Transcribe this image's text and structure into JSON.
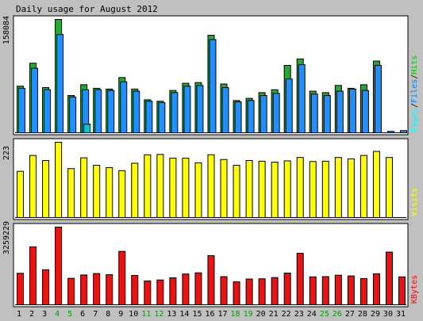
{
  "chart_data": [
    {
      "type": "bar",
      "title": "Daily usage for August 2012",
      "panel": "hits-files-pages",
      "ymax_label": "158084",
      "legend": [
        {
          "name": "Pages",
          "color": "#00ffff"
        },
        {
          "name": "Files",
          "color": "#0080ff"
        },
        {
          "name": "Hits",
          "color": "#00c000"
        }
      ],
      "separator": "/",
      "categories": [
        "1",
        "2",
        "3",
        "4",
        "5",
        "6",
        "7",
        "8",
        "9",
        "10",
        "11",
        "12",
        "13",
        "14",
        "15",
        "16",
        "17",
        "18",
        "19",
        "20",
        "21",
        "22",
        "23",
        "24",
        "25",
        "26",
        "27",
        "28",
        "29",
        "30",
        "31"
      ],
      "series": [
        {
          "name": "Hits",
          "color": "#22aa33",
          "values": [
            65000,
            97000,
            63000,
            158084,
            52000,
            67000,
            62000,
            61000,
            77000,
            61000,
            46000,
            44000,
            59000,
            69000,
            70000,
            136000,
            68000,
            45000,
            48000,
            56000,
            60000,
            94000,
            103000,
            58000,
            56000,
            66000,
            62000,
            67000,
            100000,
            0,
            0
          ]
        },
        {
          "name": "Files",
          "color": "#1e90ff",
          "values": [
            62000,
            90000,
            60000,
            137000,
            50000,
            60000,
            60000,
            59000,
            71000,
            58000,
            44000,
            42000,
            56000,
            65000,
            66000,
            130000,
            63000,
            43000,
            45000,
            52000,
            55000,
            75000,
            95000,
            54000,
            52000,
            58000,
            61000,
            59000,
            94000,
            2000,
            3000
          ]
        },
        {
          "name": "Pages",
          "color": "#00cccc",
          "values": [
            0,
            0,
            0,
            0,
            0,
            12000,
            0,
            0,
            0,
            0,
            0,
            0,
            0,
            0,
            0,
            0,
            0,
            0,
            0,
            0,
            0,
            0,
            0,
            0,
            0,
            0,
            0,
            0,
            0,
            0,
            0
          ]
        }
      ]
    },
    {
      "type": "bar",
      "panel": "visits",
      "ymax_label": "223",
      "legend": [
        {
          "name": "Visits",
          "color": "#ffff00"
        }
      ],
      "series": [
        {
          "name": "Visits",
          "color": "#ffff00",
          "values": [
            137,
            184,
            169,
            223,
            145,
            177,
            155,
            148,
            139,
            161,
            186,
            187,
            176,
            176,
            162,
            186,
            172,
            155,
            169,
            167,
            164,
            168,
            178,
            166,
            167,
            178,
            174,
            184,
            196,
            178,
            0
          ]
        }
      ]
    },
    {
      "type": "bar",
      "panel": "kbytes",
      "ymax_label": "3259229",
      "legend": [
        {
          "name": "KBytes",
          "color": "#ff0000"
        }
      ],
      "series": [
        {
          "name": "KBytes",
          "color": "#ee1111",
          "values": [
            1320000,
            2430000,
            1470000,
            3259229,
            1110000,
            1250000,
            1310000,
            1260000,
            2240000,
            1230000,
            1000000,
            1040000,
            1130000,
            1290000,
            1340000,
            2060000,
            1180000,
            960000,
            1080000,
            1090000,
            1140000,
            1330000,
            2160000,
            1170000,
            1180000,
            1240000,
            1210000,
            1100000,
            1300000,
            2210000,
            1170000
          ]
        }
      ]
    }
  ],
  "x_labels": [
    "1",
    "2",
    "3",
    "4",
    "5",
    "6",
    "7",
    "8",
    "9",
    "10",
    "11",
    "12",
    "13",
    "14",
    "15",
    "16",
    "17",
    "18",
    "19",
    "20",
    "21",
    "22",
    "23",
    "24",
    "25",
    "26",
    "27",
    "28",
    "29",
    "30",
    "31"
  ],
  "weekend_days": [
    "4",
    "5",
    "11",
    "12",
    "18",
    "19",
    "25",
    "26"
  ],
  "colors": {
    "weekday": "#000000",
    "weekend": "#00a000",
    "bg": "#ffffff",
    "frame": "#c0c0c0"
  }
}
